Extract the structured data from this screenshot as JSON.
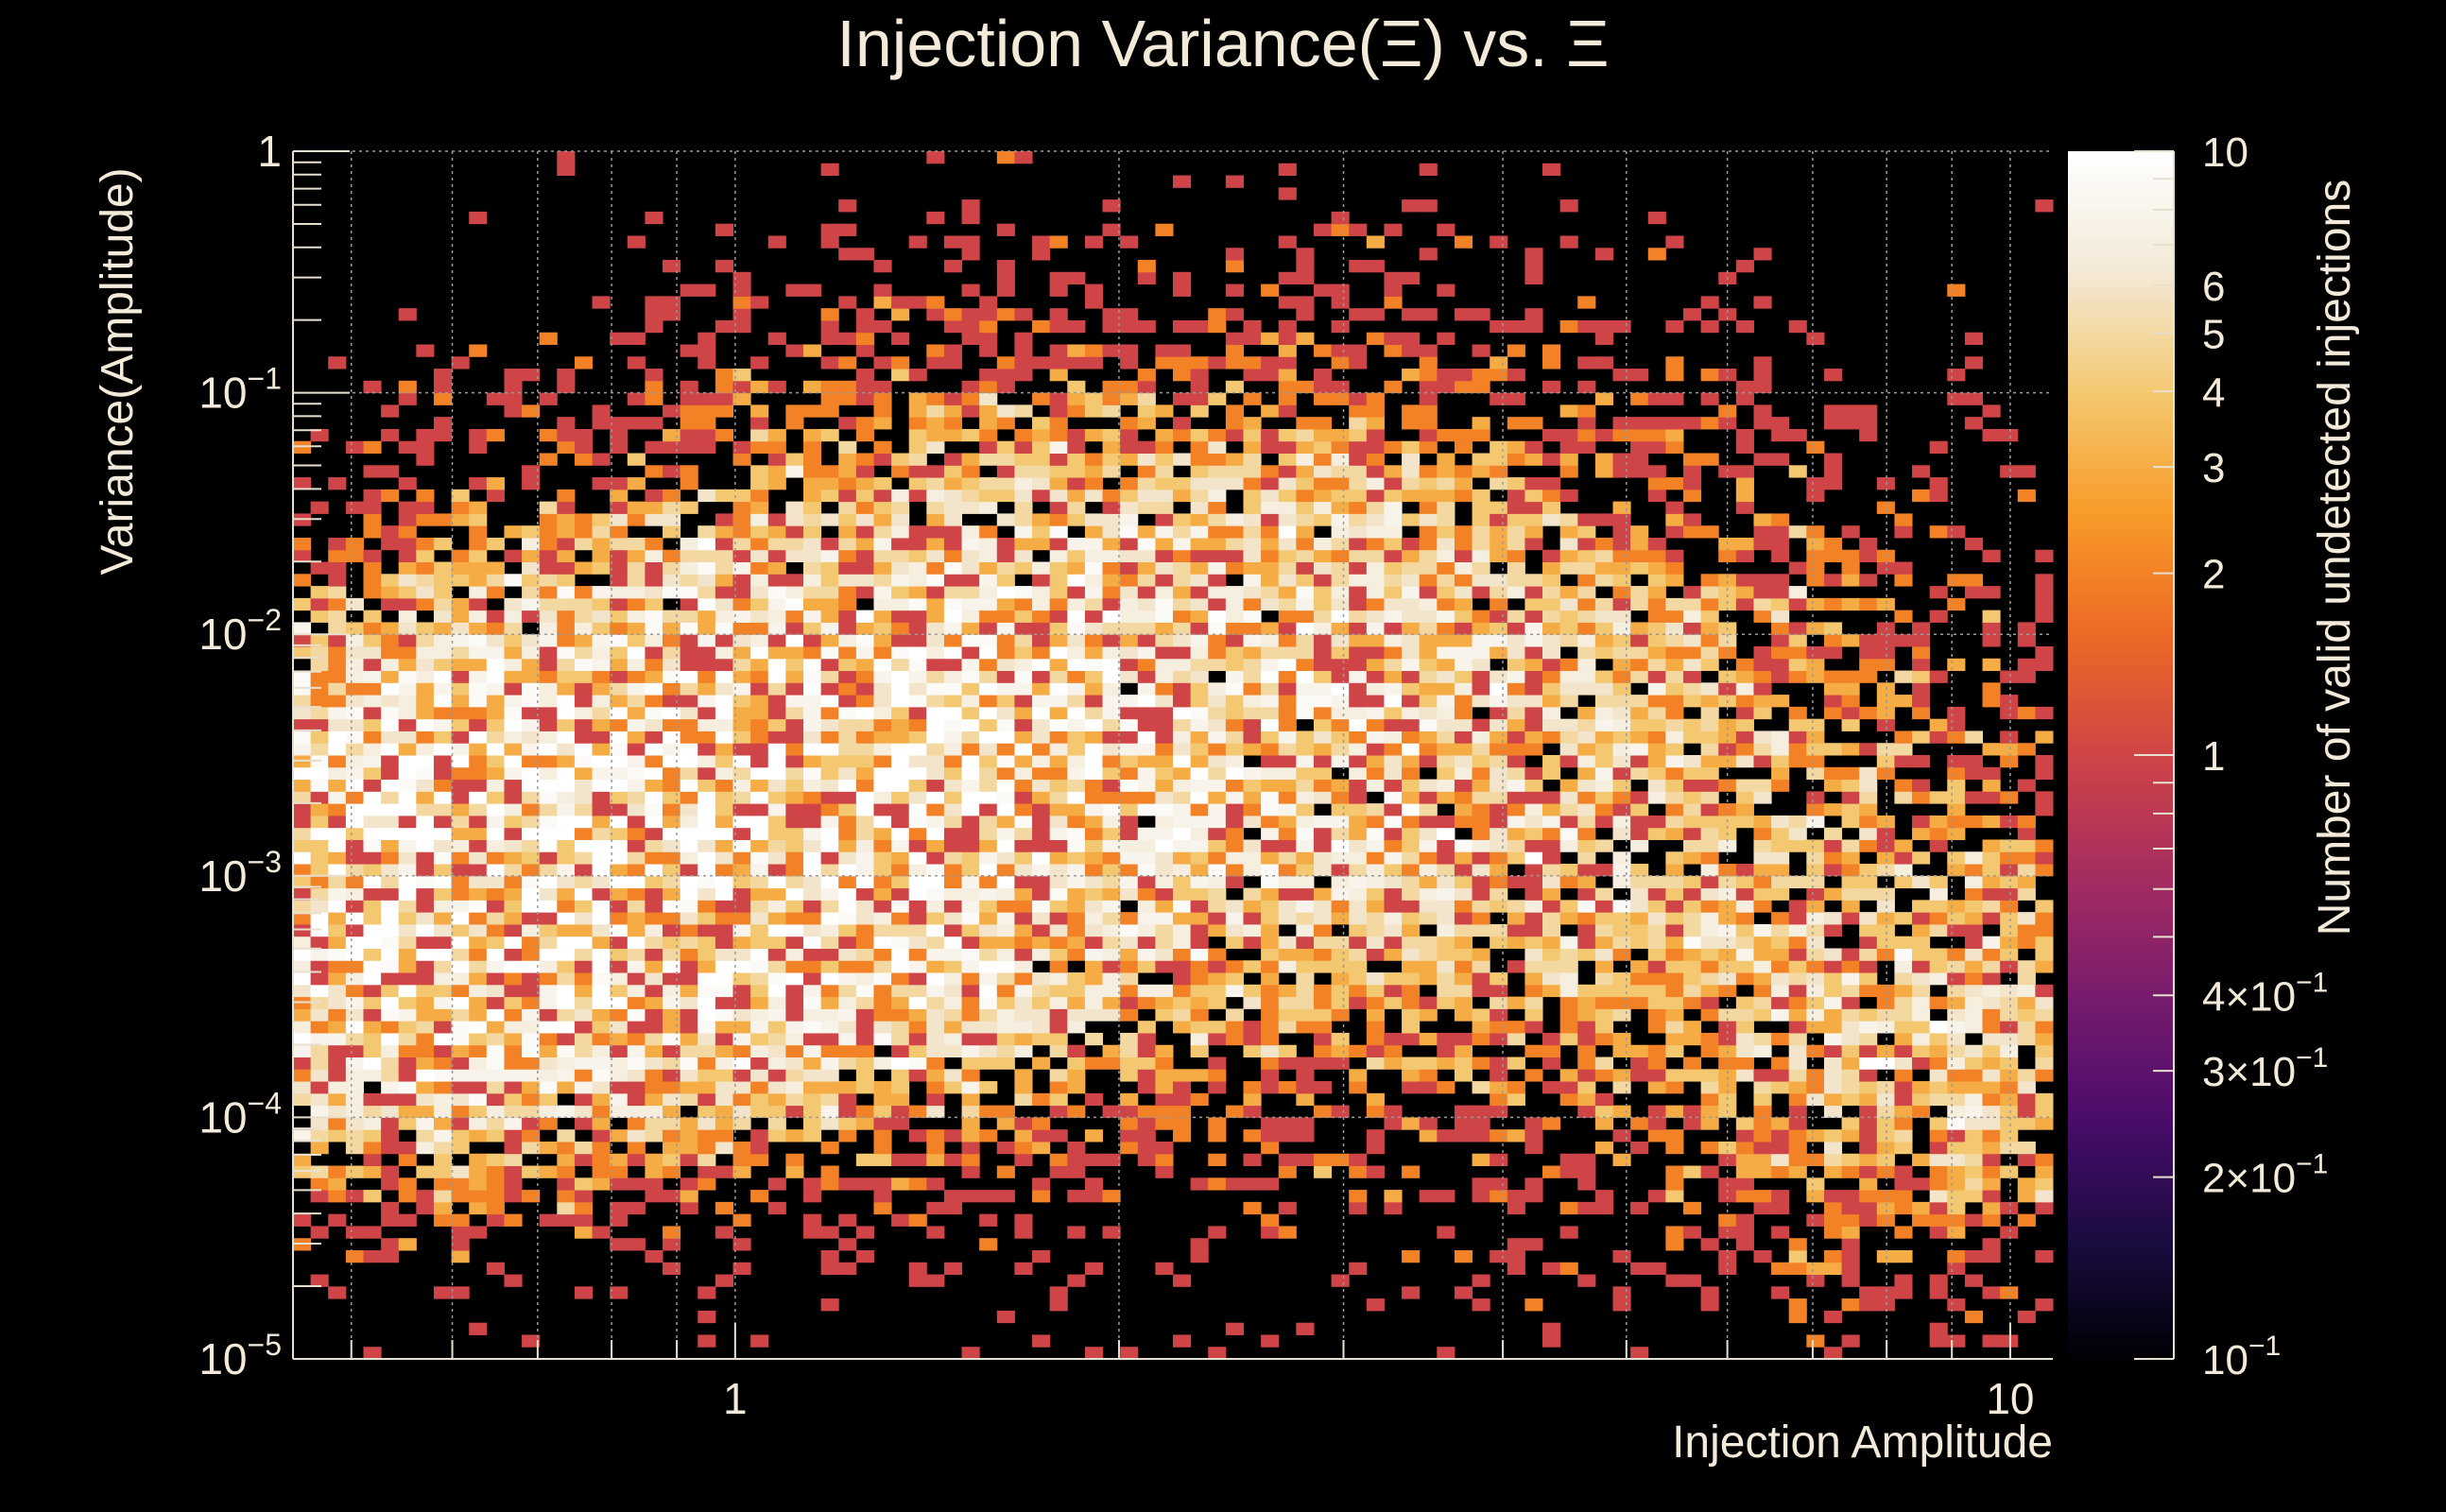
{
  "chart_data": {
    "type": "heatmap",
    "title": "Injection Variance(Ξ) vs. Ξ",
    "xlabel": "Injection Amplitude",
    "ylabel": "Variance(Amplitude)",
    "zlabel": "Number of valid undetected injections",
    "xscale": "log",
    "yscale": "log",
    "zscale": "log",
    "xlim": [
      0.45,
      10.8
    ],
    "ylim": [
      1e-05,
      1
    ],
    "zlim": [
      0.1,
      10
    ],
    "grid": true,
    "x_ticks": [
      {
        "value": 1,
        "label": "1"
      },
      {
        "value": 10,
        "label": "10"
      }
    ],
    "y_ticks": [
      {
        "value": 1,
        "base": "1",
        "exp": ""
      },
      {
        "value": 0.1,
        "base": "10",
        "exp": "−1"
      },
      {
        "value": 0.01,
        "base": "10",
        "exp": "−2"
      },
      {
        "value": 0.001,
        "base": "10",
        "exp": "−3"
      },
      {
        "value": 0.0001,
        "base": "10",
        "exp": "−4"
      },
      {
        "value": 1e-05,
        "base": "10",
        "exp": "−5"
      }
    ],
    "colorbar_ticks": [
      {
        "value": 10,
        "base": "10",
        "exp": ""
      },
      {
        "value": 6,
        "base": "6",
        "exp": ""
      },
      {
        "value": 5,
        "base": "5",
        "exp": ""
      },
      {
        "value": 4,
        "base": "4",
        "exp": ""
      },
      {
        "value": 3,
        "base": "3",
        "exp": ""
      },
      {
        "value": 2,
        "base": "2",
        "exp": ""
      },
      {
        "value": 1,
        "base": "1",
        "exp": ""
      },
      {
        "value": 0.4,
        "base": "4×10",
        "exp": "−1"
      },
      {
        "value": 0.3,
        "base": "3×10",
        "exp": "−1"
      },
      {
        "value": 0.2,
        "base": "2×10",
        "exp": "−1"
      },
      {
        "value": 0.1,
        "base": "10",
        "exp": "−1"
      }
    ],
    "colormap": [
      "#000004",
      "#1b0c41",
      "#4a0c6b",
      "#781c6d",
      "#a52c60",
      "#cf4446",
      "#ed6925",
      "#f89b29",
      "#f3c86f",
      "#f3e9d6",
      "#ffffff"
    ],
    "density_clusters": [
      {
        "x": 0.52,
        "y": 0.0008,
        "sx": 0.16,
        "sy": 0.55,
        "peak": 7
      },
      {
        "x": 0.68,
        "y": 0.0011,
        "sx": 0.18,
        "sy": 0.6,
        "peak": 5
      },
      {
        "x": 1.0,
        "y": 0.0012,
        "sx": 0.16,
        "sy": 0.55,
        "peak": 4.5
      },
      {
        "x": 1.35,
        "y": 0.003,
        "sx": 0.22,
        "sy": 0.75,
        "peak": 2.8
      },
      {
        "x": 2.0,
        "y": 0.006,
        "sx": 0.25,
        "sy": 0.8,
        "peak": 2.2
      },
      {
        "x": 3.0,
        "y": 0.006,
        "sx": 0.18,
        "sy": 0.7,
        "peak": 1.6
      },
      {
        "x": 5.5,
        "y": 0.0012,
        "sx": 0.25,
        "sy": 0.9,
        "peak": 1.4
      },
      {
        "x": 9.0,
        "y": 0.00018,
        "sx": 0.12,
        "sy": 0.5,
        "peak": 2.4
      }
    ],
    "bins": {
      "nx": 100,
      "ny": 100
    }
  }
}
